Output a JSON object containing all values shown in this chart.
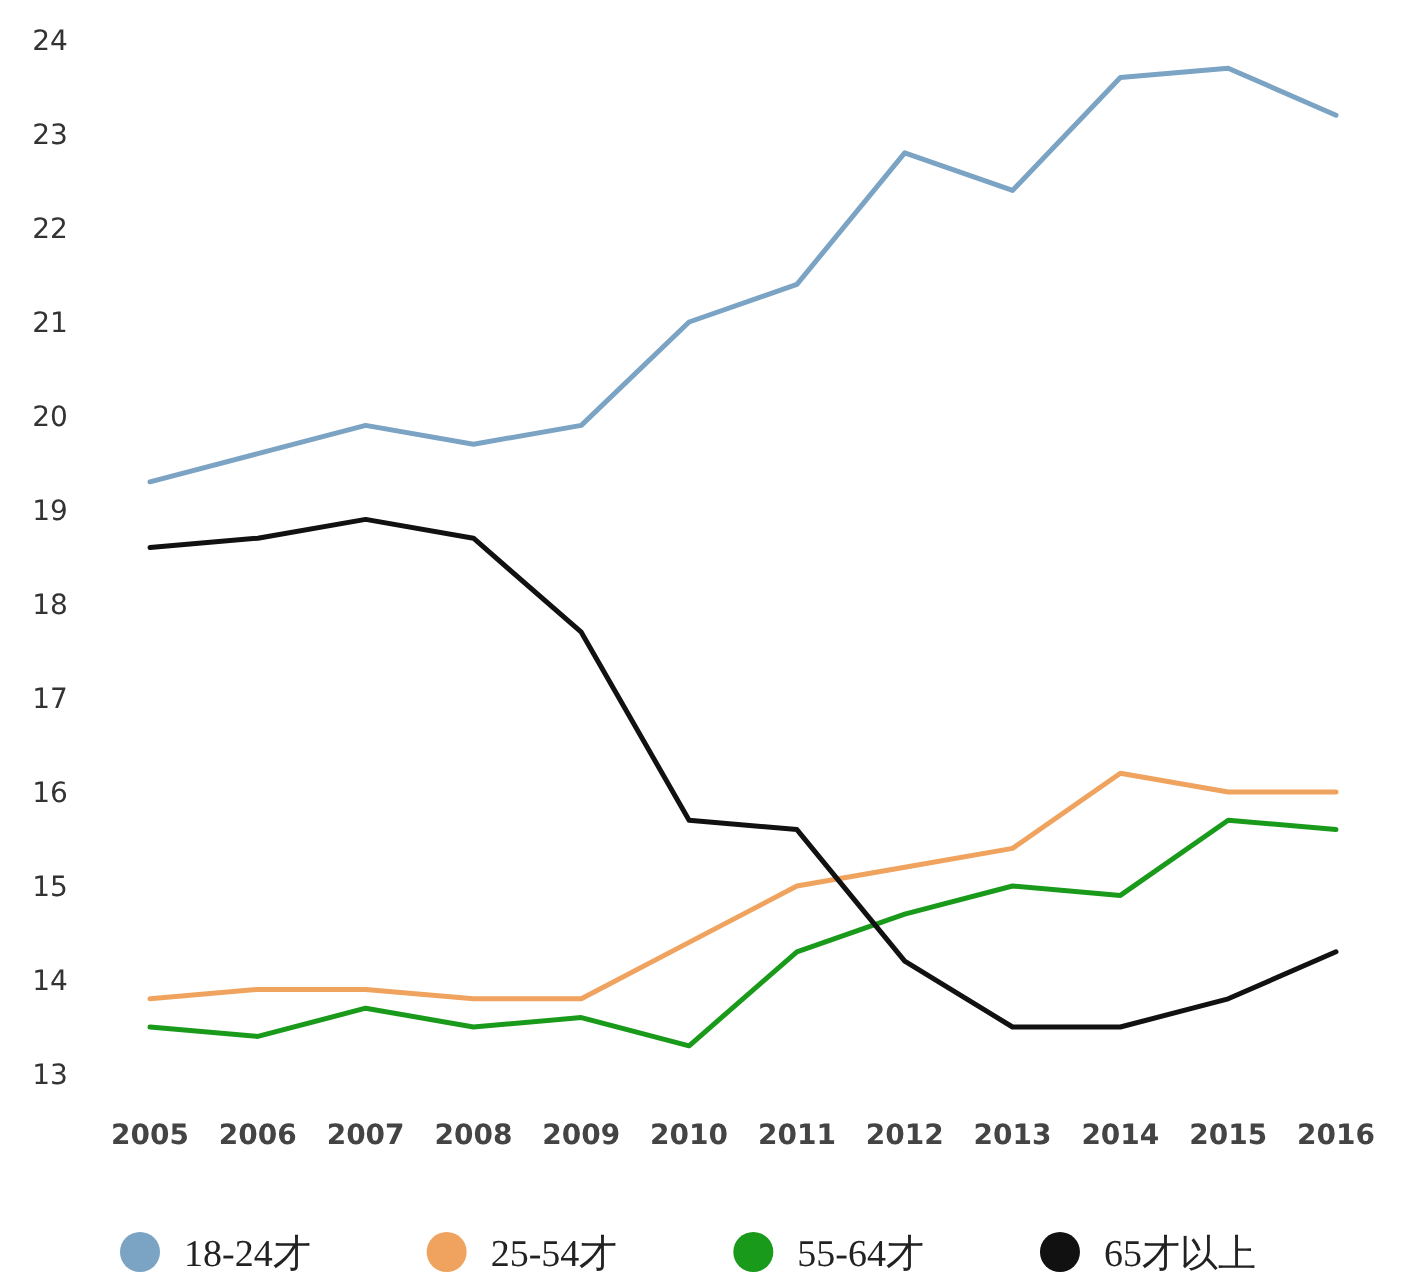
{
  "chart_data": {
    "type": "line",
    "categories": [
      "2005",
      "2006",
      "2007",
      "2008",
      "2009",
      "2010",
      "2011",
      "2012",
      "2013",
      "2014",
      "2015",
      "2016"
    ],
    "ylim": [
      13,
      24
    ],
    "yticks": [
      13,
      14,
      15,
      16,
      17,
      18,
      19,
      20,
      21,
      22,
      23,
      24
    ],
    "legend": "bottom",
    "line_style": "solid",
    "series": [
      {
        "name": "18-24才",
        "color": "#7ba3c4",
        "values": [
          19.3,
          19.6,
          19.9,
          19.7,
          19.9,
          21.0,
          21.4,
          22.8,
          22.4,
          23.6,
          23.7,
          23.2
        ]
      },
      {
        "name": "25-54才",
        "color": "#f0a35e",
        "values": [
          13.8,
          13.9,
          13.9,
          13.8,
          13.8,
          14.4,
          15.0,
          15.2,
          15.4,
          16.2,
          16.0,
          16.0
        ]
      },
      {
        "name": "55-64才",
        "color": "#1a9a1a",
        "values": [
          13.5,
          13.4,
          13.7,
          13.5,
          13.6,
          13.3,
          14.3,
          14.7,
          15.0,
          14.9,
          15.7,
          15.6
        ]
      },
      {
        "name": "65才以上",
        "color": "#111111",
        "values": [
          18.6,
          18.7,
          18.9,
          18.7,
          17.7,
          15.7,
          15.6,
          14.2,
          13.5,
          13.5,
          13.8,
          14.3
        ]
      }
    ]
  }
}
